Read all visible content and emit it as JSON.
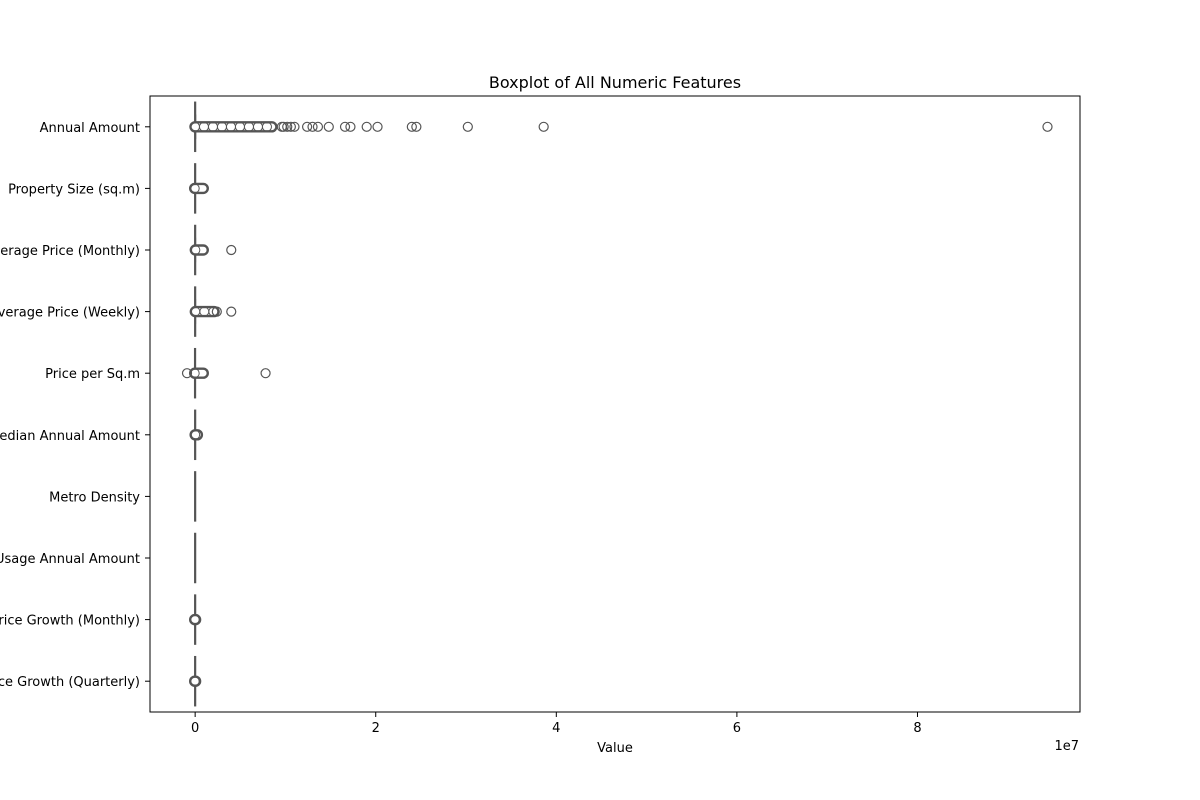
{
  "chart_data": {
    "type": "boxplot",
    "orientation": "horizontal",
    "title": "Boxplot of All Numeric Features",
    "xlabel": "Value",
    "ylabel": "",
    "x_offset_label": "1e7",
    "xlim": [
      -0.5,
      9.8
    ],
    "x_unit_scale": 10000000,
    "xticks": [
      0,
      2,
      4,
      6,
      8
    ],
    "xtick_labels": [
      "0",
      "2",
      "4",
      "6",
      "8"
    ],
    "grid": false,
    "legend": "none",
    "colors": {
      "whisker": "#555555",
      "box_edge": "#555555",
      "outlier_edge": "#555555",
      "axes": "#000000"
    },
    "categories": [
      "Annual Amount",
      "Property Size (sq.m)",
      "Average Price (Monthly)",
      "Average Price (Weekly)",
      "Price per Sq.m",
      "Median Annual Amount",
      "Metro Density",
      "Usage Annual Amount",
      "Price Growth (Monthly)",
      "Price Growth (Quarterly)"
    ],
    "series": [
      {
        "category": "Annual Amount",
        "q1": 0,
        "median": 0.01,
        "q3": 0.02,
        "whisker_low": 0,
        "whisker_high": 0.05,
        "outlier_band": [
          -0.02,
          8.5
        ],
        "outliers": [
          9.6,
          9.8,
          10.2,
          10.6,
          11.0,
          12.4,
          13.0,
          13.6,
          14.8,
          16.6,
          17.2,
          19.0,
          20.2,
          24.0,
          24.5,
          30.2,
          38.6,
          94.4
        ]
      },
      {
        "category": "Property Size (sq.m)",
        "q1": 0,
        "median": 0.0,
        "q3": 0.01,
        "whisker_low": -0.01,
        "whisker_high": 0.02,
        "outlier_band": [
          -0.05,
          0.9
        ],
        "outliers": []
      },
      {
        "category": "Average Price (Monthly)",
        "q1": 0,
        "median": 0.01,
        "q3": 0.02,
        "whisker_low": 0,
        "whisker_high": 0.04,
        "outlier_band": [
          0.02,
          0.9
        ],
        "outliers": [
          4.0
        ]
      },
      {
        "category": "Average Price (Weekly)",
        "q1": 0,
        "median": 0.01,
        "q3": 0.02,
        "whisker_low": 0,
        "whisker_high": 0.04,
        "outlier_band": [
          0.02,
          2.1
        ],
        "outliers": [
          2.4,
          4.0
        ]
      },
      {
        "category": "Price per Sq.m",
        "q1": -0.01,
        "median": 0.0,
        "q3": 0.01,
        "whisker_low": -0.02,
        "whisker_high": 0.02,
        "outlier_band": [
          -0.05,
          0.9
        ],
        "outliers": [
          -0.9,
          7.8
        ]
      },
      {
        "category": "Median Annual Amount",
        "q1": 0,
        "median": 0.01,
        "q3": 0.02,
        "whisker_low": 0,
        "whisker_high": 0.03,
        "outlier_band": [
          0,
          0.25
        ],
        "outliers": []
      },
      {
        "category": "Metro Density",
        "q1": 0,
        "median": 0,
        "q3": 0,
        "whisker_low": 0,
        "whisker_high": 0,
        "outlier_band": [],
        "outliers": []
      },
      {
        "category": "Usage Annual Amount",
        "q1": 0,
        "median": 0,
        "q3": 0,
        "whisker_low": 0,
        "whisker_high": 0,
        "outlier_band": [],
        "outliers": []
      },
      {
        "category": "Price Growth (Monthly)",
        "q1": 0,
        "median": 0,
        "q3": 0,
        "whisker_low": 0,
        "whisker_high": 0,
        "outlier_band": [
          -0.05,
          0.05
        ],
        "outliers": []
      },
      {
        "category": "Price Growth (Quarterly)",
        "q1": 0,
        "median": 0,
        "q3": 0,
        "whisker_low": 0,
        "whisker_high": 0,
        "outlier_band": [
          -0.05,
          0.05
        ],
        "outliers": []
      }
    ],
    "values_note_unit": "x 1e6"
  }
}
